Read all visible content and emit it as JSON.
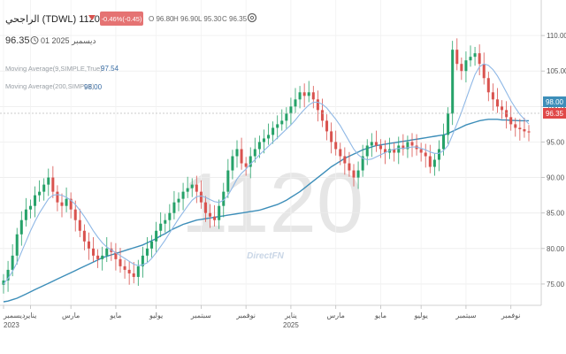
{
  "header": {
    "title": "الراجحي (TDWL)  1120",
    "change_badge": "-0.46%(-0.45)",
    "ohlc": [
      "O  96.80",
      "H  96.90",
      "L  95.30",
      "C  96.35"
    ],
    "price": "96.35",
    "date": "ديسمبر 2025 01",
    "indicators": [
      {
        "label": "Moving Average(9,SIMPLE,True)",
        "value": "97.54"
      },
      {
        "label": "Moving Average(200,SIMPLE)",
        "value": "98.00"
      }
    ]
  },
  "watermark": "1120",
  "brand": "DirectFN",
  "price_tags": {
    "ma200": "98.00",
    "last": "96.35"
  },
  "colors": {
    "up": "#26a269",
    "down": "#d9534f",
    "ma9": "#8fb8e6",
    "ma200": "#3d8eb9",
    "badge": "#e57373"
  },
  "chart_data": {
    "type": "candlestick",
    "ylim": [
      72,
      115
    ],
    "yticks": [
      75,
      80,
      85,
      90,
      95,
      100,
      105,
      110
    ],
    "xticks": [
      {
        "label": "ديسمبر",
        "year": "2023",
        "i": 0
      },
      {
        "label": "يناير",
        "year": "",
        "i": 6
      },
      {
        "label": "مارس",
        "year": "",
        "i": 15
      },
      {
        "label": "مايو",
        "year": "",
        "i": 25
      },
      {
        "label": "يوليو",
        "year": "",
        "i": 34
      },
      {
        "label": "سبتمبر",
        "year": "",
        "i": 44
      },
      {
        "label": "نوفمبر",
        "year": "",
        "i": 54
      },
      {
        "label": "يناير",
        "year": "2025",
        "i": 64
      },
      {
        "label": "مارس",
        "year": "",
        "i": 74
      },
      {
        "label": "مايو",
        "year": "",
        "i": 84
      },
      {
        "label": "يوليو",
        "year": "",
        "i": 93
      },
      {
        "label": "سبتمبر",
        "year": "",
        "i": 103
      },
      {
        "label": "نوفمبر",
        "year": "",
        "i": 113
      }
    ],
    "close": [
      75.5,
      77,
      79,
      82,
      84,
      85.5,
      86,
      87.5,
      88,
      89,
      90,
      88,
      86.5,
      86,
      87,
      85.5,
      84,
      82.5,
      81,
      80,
      79,
      78.5,
      79,
      80,
      79.5,
      78.5,
      77.5,
      77,
      76.5,
      76,
      77.5,
      79,
      80,
      81,
      82.5,
      83.5,
      84,
      85,
      86.5,
      87,
      88,
      88.5,
      89,
      88,
      86.5,
      85,
      84.5,
      84,
      86,
      88,
      91,
      93,
      94,
      92,
      91.5,
      93,
      94,
      95,
      95.5,
      96,
      97,
      97.5,
      98,
      99,
      100,
      101,
      102,
      101.5,
      102,
      101,
      99.5,
      98,
      96.5,
      95,
      94,
      93,
      92,
      91,
      90,
      91,
      93,
      94.5,
      95,
      94.5,
      94,
      93.5,
      94,
      93.5,
      94.5,
      94,
      95,
      94.5,
      94,
      93.5,
      93,
      91.5,
      92.5,
      94,
      96,
      99,
      108,
      106,
      105,
      106.5,
      107,
      107.5,
      106,
      104,
      102,
      101,
      100,
      99.5,
      98.5,
      97.5,
      97,
      96.8,
      96.5,
      96.35
    ],
    "ma9": [
      75,
      75.8,
      76.8,
      78,
      79.5,
      81,
      82.5,
      83.8,
      85,
      86,
      87,
      87.5,
      87.6,
      87.5,
      87.2,
      86.8,
      86.2,
      85.4,
      84.5,
      83.5,
      82.5,
      81.6,
      80.8,
      80.2,
      79.8,
      79.4,
      79,
      78.6,
      78.2,
      77.8,
      77.6,
      77.7,
      78,
      78.6,
      79.4,
      80.3,
      81.2,
      82.2,
      83.2,
      84.2,
      85.1,
      86,
      86.8,
      87.3,
      87.4,
      87.2,
      86.9,
      86.6,
      86.5,
      86.8,
      87.5,
      88.6,
      89.8,
      90.6,
      91.2,
      91.9,
      92.5,
      93.2,
      93.8,
      94.4,
      95,
      95.6,
      96.2,
      96.8,
      97.4,
      98.1,
      98.9,
      99.6,
      100.2,
      100.6,
      100.6,
      100.3,
      99.8,
      99,
      98.2,
      97.3,
      96.2,
      95.1,
      94,
      93.2,
      92.7,
      92.5,
      92.6,
      92.9,
      93.2,
      93.5,
      93.8,
      94,
      94.1,
      94.1,
      94.2,
      94.3,
      94.3,
      94.1,
      93.9,
      93.6,
      93.4,
      93.4,
      93.8,
      94.5,
      96,
      97.6,
      99.2,
      101,
      102.8,
      104.5,
      105.6,
      106,
      105.8,
      105.2,
      104.3,
      103.2,
      102,
      100.8,
      99.8,
      98.9,
      98.2,
      97.54
    ],
    "ma200": [
      72.5,
      72.6,
      72.8,
      73,
      73.3,
      73.6,
      73.9,
      74.2,
      74.5,
      74.8,
      75.1,
      75.4,
      75.7,
      76,
      76.3,
      76.6,
      76.9,
      77.2,
      77.5,
      77.8,
      78.1,
      78.4,
      78.7,
      78.9,
      79.1,
      79.3,
      79.5,
      79.7,
      79.9,
      80.1,
      80.3,
      80.5,
      80.8,
      81.1,
      81.4,
      81.8,
      82.1,
      82.5,
      82.8,
      83.1,
      83.4,
      83.6,
      83.8,
      84,
      84.1,
      84.2,
      84.3,
      84.4,
      84.5,
      84.6,
      84.7,
      84.8,
      84.9,
      85,
      85.1,
      85.2,
      85.3,
      85.4,
      85.6,
      85.8,
      86,
      86.2,
      86.5,
      86.8,
      87.2,
      87.6,
      88,
      88.5,
      89,
      89.5,
      90,
      90.5,
      91,
      91.5,
      91.9,
      92.3,
      92.7,
      93,
      93.3,
      93.6,
      93.9,
      94.1,
      94.3,
      94.5,
      94.6,
      94.7,
      94.8,
      94.9,
      95,
      95.1,
      95.2,
      95.3,
      95.4,
      95.5,
      95.6,
      95.7,
      95.8,
      95.9,
      96,
      96.2,
      96.5,
      96.8,
      97.1,
      97.4,
      97.6,
      97.8,
      98,
      98.1,
      98.2,
      98.2,
      98.2,
      98.1,
      98.1,
      98.05,
      98.02,
      98,
      98,
      98
    ]
  }
}
